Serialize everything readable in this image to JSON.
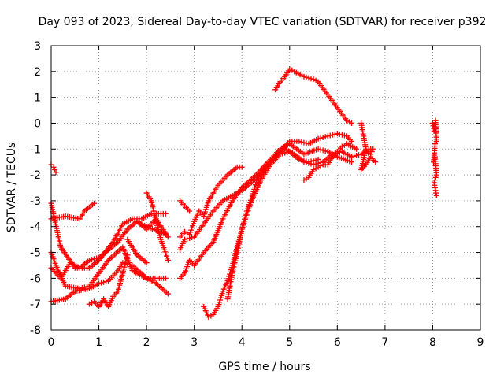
{
  "chart_data": {
    "type": "scatter",
    "title": "Day 093 of 2023, Sidereal Day-to-day VTEC variation (SDTVAR) for receiver p392",
    "xlabel": "GPS time / hours",
    "ylabel": "SDTVAR / TECUs",
    "xlim": [
      0,
      9
    ],
    "ylim": [
      -8,
      3
    ],
    "xticks": [
      0,
      1,
      2,
      3,
      4,
      5,
      6,
      7,
      8,
      9
    ],
    "yticks": [
      -8,
      -7,
      -6,
      -5,
      -4,
      -3,
      -2,
      -1,
      0,
      1,
      2,
      3
    ],
    "grid": true,
    "legend": "none",
    "marker": "plus",
    "color": "#ff0000",
    "series": [
      {
        "x": [
          0.0,
          0.05,
          0.1
        ],
        "y": [
          -1.6,
          -1.7,
          -1.9
        ]
      },
      {
        "x": [
          0.0,
          0.3,
          0.6,
          0.7,
          0.9
        ],
        "y": [
          -3.7,
          -3.6,
          -3.7,
          -3.4,
          -3.1
        ]
      },
      {
        "x": [
          0.0,
          0.3,
          0.5,
          0.8,
          1.0,
          1.2,
          1.4,
          1.5,
          1.7,
          2.0,
          2.4
        ],
        "y": [
          -6.9,
          -6.8,
          -6.5,
          -6.4,
          -6.2,
          -6.1,
          -5.7,
          -5.4,
          -5.5,
          -6.0,
          -6.0
        ]
      },
      {
        "x": [
          0.0,
          0.2,
          0.5,
          0.8,
          1.0,
          1.3,
          1.5,
          1.7,
          1.9,
          2.1,
          2.4
        ],
        "y": [
          -3.1,
          -4.8,
          -5.6,
          -5.6,
          -5.3,
          -4.6,
          -3.9,
          -3.7,
          -3.7,
          -3.5,
          -3.5
        ]
      },
      {
        "x": [
          0.0,
          0.1,
          0.3,
          0.6,
          0.8,
          1.0,
          1.2,
          1.5,
          1.7,
          1.9,
          2.2,
          2.45
        ],
        "y": [
          -5.0,
          -5.5,
          -6.3,
          -6.4,
          -6.3,
          -5.8,
          -5.3,
          -4.8,
          -5.7,
          -5.9,
          -6.2,
          -6.6
        ]
      },
      {
        "x": [
          0.0,
          0.2,
          0.4,
          0.6,
          0.8,
          1.0,
          1.2,
          1.4,
          1.6,
          1.8,
          2.0,
          2.4
        ],
        "y": [
          -5.6,
          -6.0,
          -5.4,
          -5.6,
          -5.3,
          -5.2,
          -4.9,
          -4.6,
          -4.1,
          -3.8,
          -4.0,
          -4.3
        ]
      },
      {
        "x": [
          0.8,
          0.9,
          1.0,
          1.1,
          1.2,
          1.3,
          1.4,
          1.5,
          1.6
        ],
        "y": [
          -7.0,
          -6.9,
          -7.1,
          -6.8,
          -7.1,
          -6.7,
          -6.5,
          -5.8,
          -5.1
        ]
      },
      {
        "x": [
          1.6,
          1.7,
          1.8,
          2.0
        ],
        "y": [
          -4.5,
          -4.8,
          -5.1,
          -5.4
        ]
      },
      {
        "x": [
          2.0,
          2.1,
          2.2,
          2.3,
          2.45
        ],
        "y": [
          -2.7,
          -3.0,
          -3.8,
          -4.5,
          -5.3
        ]
      },
      {
        "x": [
          1.8,
          2.0,
          2.2,
          2.45
        ],
        "y": [
          -3.8,
          -4.1,
          -3.7,
          -4.4
        ]
      },
      {
        "x": [
          2.7,
          2.8,
          2.9
        ],
        "y": [
          -3.0,
          -3.2,
          -3.4
        ]
      },
      {
        "x": [
          2.7,
          2.8,
          2.9,
          3.0,
          3.1,
          3.2,
          3.3,
          3.5,
          3.7,
          3.9,
          4.0
        ],
        "y": [
          -4.4,
          -4.2,
          -4.3,
          -3.8,
          -3.4,
          -3.6,
          -3.0,
          -2.4,
          -2.0,
          -1.7,
          -1.7
        ]
      },
      {
        "x": [
          2.7,
          2.8,
          2.9,
          3.0,
          3.2,
          3.4,
          3.6,
          3.8,
          4.0,
          4.3,
          4.6,
          4.8,
          5.0,
          5.3,
          5.6,
          5.8,
          6.0,
          6.3
        ],
        "y": [
          -6.0,
          -5.8,
          -5.3,
          -5.5,
          -5.0,
          -4.6,
          -3.7,
          -3.0,
          -2.5,
          -2.0,
          -1.4,
          -1.0,
          -0.8,
          -1.2,
          -1.0,
          -1.1,
          -1.3,
          -1.5
        ]
      },
      {
        "x": [
          2.7,
          2.8,
          3.0,
          3.2,
          3.4,
          3.6,
          3.8,
          4.0,
          4.2,
          4.4,
          4.6,
          4.8,
          5.0,
          5.2,
          5.4,
          5.6,
          5.8,
          6.0,
          6.2,
          6.3
        ],
        "y": [
          -4.9,
          -4.5,
          -4.4,
          -3.9,
          -3.4,
          -3.0,
          -2.8,
          -2.6,
          -2.3,
          -1.9,
          -1.5,
          -1.1,
          -0.7,
          -0.7,
          -0.8,
          -0.6,
          -0.5,
          -0.4,
          -0.5,
          -0.7
        ]
      },
      {
        "x": [
          3.2,
          3.3,
          3.4,
          3.5,
          3.6,
          3.7,
          3.8,
          3.9,
          4.0,
          4.2,
          4.4,
          4.6,
          4.8,
          5.0,
          5.2,
          5.4,
          5.6
        ],
        "y": [
          -7.1,
          -7.5,
          -7.4,
          -7.1,
          -6.5,
          -6.1,
          -5.5,
          -4.8,
          -4.1,
          -3.0,
          -2.2,
          -1.6,
          -1.2,
          -1.1,
          -1.4,
          -1.5,
          -1.4
        ]
      },
      {
        "x": [
          3.7,
          3.8,
          3.9,
          4.0,
          4.1,
          4.2,
          4.3,
          4.5,
          4.7,
          4.9,
          5.1,
          5.3,
          5.5,
          5.7,
          5.9,
          6.1,
          6.3,
          6.5,
          6.7
        ],
        "y": [
          -6.8,
          -5.8,
          -5.0,
          -4.1,
          -3.4,
          -2.9,
          -2.3,
          -1.7,
          -1.3,
          -1.0,
          -1.2,
          -1.5,
          -1.6,
          -1.5,
          -1.2,
          -1.1,
          -1.3,
          -1.2,
          -1.0
        ]
      },
      {
        "x": [
          4.7,
          4.8,
          4.9,
          5.0,
          5.1,
          5.3,
          5.5,
          5.6,
          5.8,
          6.0,
          6.2,
          6.3
        ],
        "y": [
          1.3,
          1.6,
          1.8,
          2.1,
          2.0,
          1.8,
          1.7,
          1.6,
          1.1,
          0.6,
          0.1,
          0.0
        ]
      },
      {
        "x": [
          5.3,
          5.4,
          5.5,
          5.6,
          5.7,
          5.8,
          5.9,
          6.0,
          6.1,
          6.2,
          6.4
        ],
        "y": [
          -2.2,
          -2.1,
          -1.8,
          -1.7,
          -1.6,
          -1.6,
          -1.3,
          -1.1,
          -0.9,
          -0.8,
          -1.0
        ]
      },
      {
        "x": [
          6.5,
          6.55,
          6.6,
          6.5,
          6.6,
          6.7,
          6.8
        ],
        "y": [
          0.0,
          -0.5,
          -1.0,
          -1.8,
          -1.6,
          -1.3,
          -1.5
        ]
      },
      {
        "x": [
          6.5,
          6.6,
          6.7,
          6.75
        ],
        "y": [
          -1.2,
          -1.1,
          -1.2,
          -1.0
        ]
      },
      {
        "x": [
          8.0,
          8.03,
          8.06,
          8.08,
          8.05,
          8.02,
          8.05,
          8.08,
          8.03,
          8.05,
          8.08
        ],
        "y": [
          0.0,
          -0.3,
          0.1,
          -0.7,
          -0.8,
          -1.5,
          -1.3,
          -2.0,
          -2.3,
          -2.5,
          -2.8
        ]
      }
    ]
  }
}
